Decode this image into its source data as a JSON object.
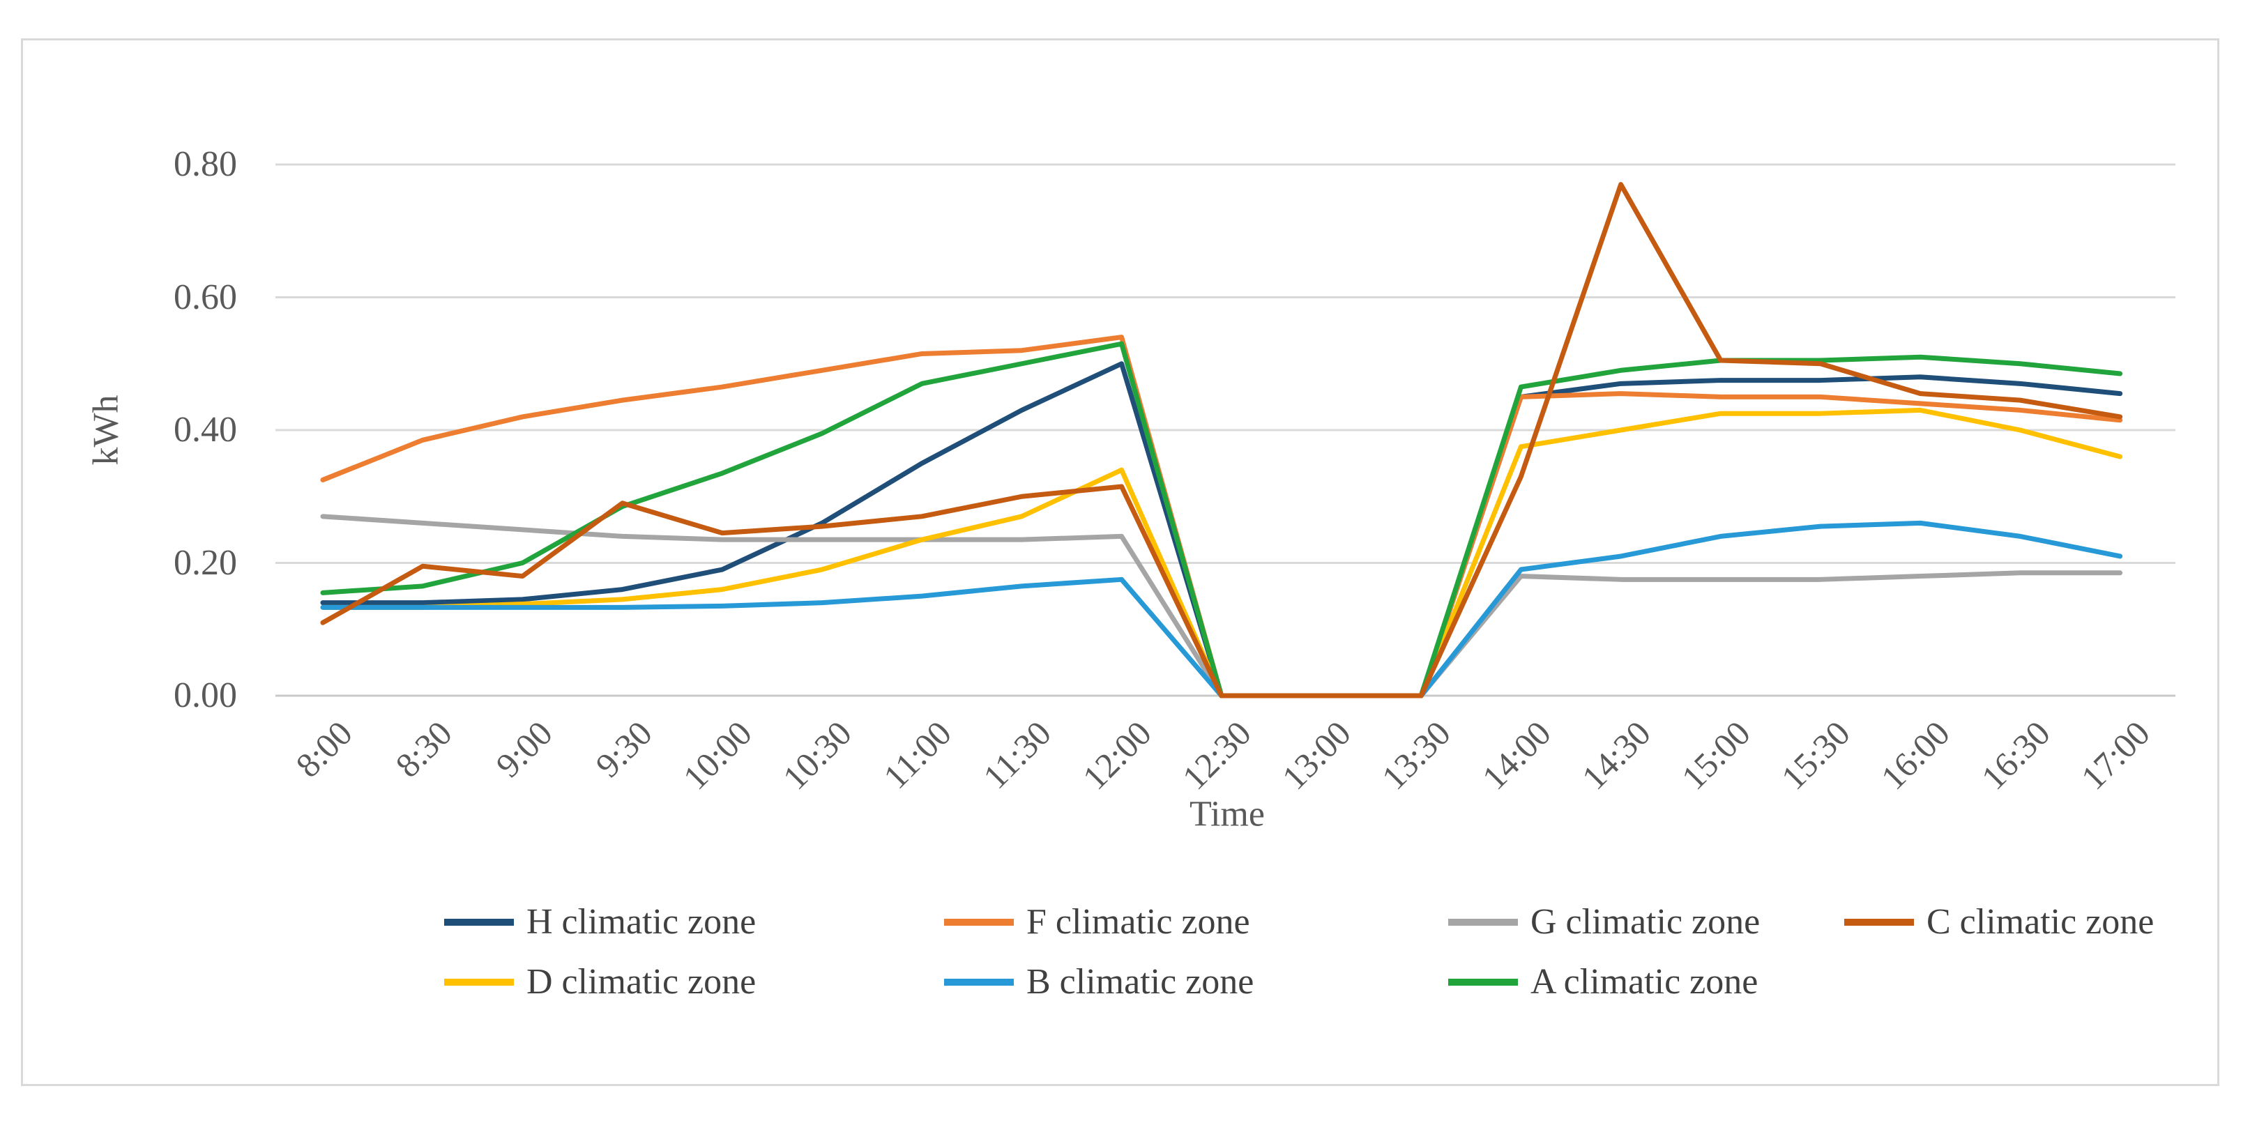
{
  "chart_data": {
    "type": "line",
    "title": "",
    "xlabel": "Time",
    "ylabel": "kWh",
    "ylim": [
      0.0,
      0.8
    ],
    "yticks": [
      0.0,
      0.2,
      0.4,
      0.6,
      0.8
    ],
    "ytick_labels": [
      "0.00",
      "0.20",
      "0.40",
      "0.60",
      "0.80"
    ],
    "grid": true,
    "legend_position": "bottom",
    "categories": [
      "8:00",
      "8:30",
      "9:00",
      "9:30",
      "10:00",
      "10:30",
      "11:00",
      "11:30",
      "12:00",
      "12:30",
      "13:00",
      "13:30",
      "14:00",
      "14:30",
      "15:00",
      "15:30",
      "16:00",
      "16:30",
      "17:00"
    ],
    "series": [
      {
        "name": "H climatic zone",
        "color": "#1F4E79",
        "values": [
          0.14,
          0.14,
          0.145,
          0.16,
          0.19,
          0.26,
          0.35,
          0.43,
          0.5,
          0,
          0,
          0,
          0.45,
          0.47,
          0.475,
          0.475,
          0.48,
          0.47,
          0.455
        ]
      },
      {
        "name": "F climatic zone",
        "color": "#ED7D31",
        "values": [
          0.325,
          0.385,
          0.42,
          0.445,
          0.465,
          0.49,
          0.515,
          0.52,
          0.54,
          0,
          0,
          0,
          0.45,
          0.455,
          0.45,
          0.45,
          0.44,
          0.43,
          0.415
        ]
      },
      {
        "name": "G climatic zone",
        "color": "#A5A5A5",
        "values": [
          0.27,
          0.26,
          0.25,
          0.24,
          0.235,
          0.235,
          0.235,
          0.235,
          0.24,
          0,
          0,
          0,
          0.18,
          0.175,
          0.175,
          0.175,
          0.18,
          0.185,
          0.185
        ]
      },
      {
        "name": "C climatic zone",
        "color": "#C55A11",
        "values": [
          0.11,
          0.195,
          0.18,
          0.29,
          0.245,
          0.255,
          0.27,
          0.3,
          0.315,
          0,
          0,
          0,
          0.33,
          0.77,
          0.505,
          0.5,
          0.455,
          0.445,
          0.42
        ]
      },
      {
        "name": "D climatic zone",
        "color": "#FFC000",
        "values": [
          0.133,
          0.133,
          0.138,
          0.145,
          0.16,
          0.19,
          0.235,
          0.27,
          0.34,
          0,
          0,
          0,
          0.375,
          0.4,
          0.425,
          0.425,
          0.43,
          0.4,
          0.36
        ]
      },
      {
        "name": "B climatic zone",
        "color": "#2699D6",
        "values": [
          0.133,
          0.133,
          0.133,
          0.133,
          0.135,
          0.14,
          0.15,
          0.165,
          0.175,
          0,
          0,
          0,
          0.19,
          0.21,
          0.24,
          0.255,
          0.26,
          0.24,
          0.21
        ]
      },
      {
        "name": "A climatic zone",
        "color": "#22A43C",
        "values": [
          0.155,
          0.165,
          0.2,
          0.285,
          0.335,
          0.395,
          0.47,
          0.5,
          0.53,
          0,
          0,
          0,
          0.465,
          0.49,
          0.505,
          0.505,
          0.51,
          0.5,
          0.485
        ]
      }
    ],
    "draw_order": [
      "H climatic zone",
      "F climatic zone",
      "G climatic zone",
      "D climatic zone",
      "B climatic zone",
      "A climatic zone",
      "C climatic zone"
    ]
  },
  "legend": {
    "rows": [
      [
        "H climatic zone",
        "F climatic zone",
        "G climatic zone",
        "C climatic zone"
      ],
      [
        "D climatic zone",
        "B climatic zone",
        "A climatic zone"
      ]
    ]
  }
}
